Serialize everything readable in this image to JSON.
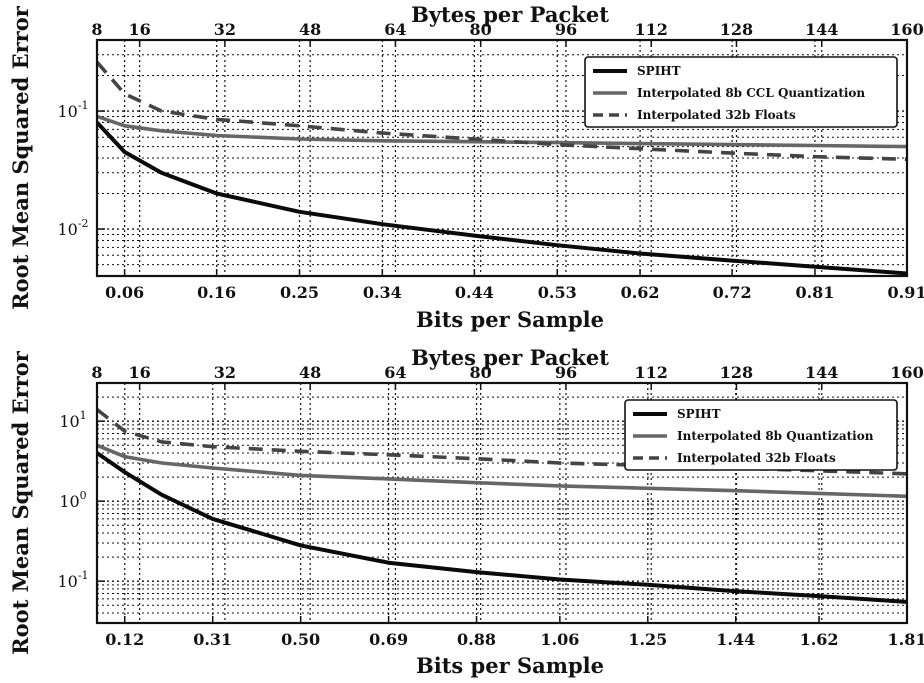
{
  "chart_data": [
    {
      "type": "line",
      "title": "",
      "top_xlabel": "Bytes per Packet",
      "top_xticks": [
        "8",
        "16",
        "32",
        "48",
        "64",
        "80",
        "96",
        "112",
        "128",
        "144",
        "160"
      ],
      "xlabel": "Bits per Sample",
      "xticks": [
        "0.06",
        "0.16",
        "0.25",
        "0.34",
        "0.44",
        "0.53",
        "0.62",
        "0.72",
        "0.81",
        "0.91"
      ],
      "ylabel": "Root Mean Squared Error",
      "yscale": "log",
      "ylim": [
        0.004,
        0.4
      ],
      "yticks": [
        {
          "label": "10",
          "exp": "-1",
          "value": 0.1
        },
        {
          "label": "10",
          "exp": "-2",
          "value": 0.01
        }
      ],
      "xlim": [
        0.03,
        0.91
      ],
      "grid": true,
      "legend_position": "top-right",
      "series": [
        {
          "name": "SPIHT",
          "style": "solid",
          "color": "#0a0a0a",
          "x": [
            0.03,
            0.06,
            0.1,
            0.16,
            0.25,
            0.34,
            0.44,
            0.53,
            0.62,
            0.72,
            0.81,
            0.91
          ],
          "y": [
            0.08,
            0.045,
            0.03,
            0.02,
            0.014,
            0.011,
            0.0088,
            0.0073,
            0.0062,
            0.0054,
            0.0048,
            0.0042
          ]
        },
        {
          "name": "Interpolated 8b CCL Quantization",
          "style": "solid",
          "color": "#666666",
          "x": [
            0.03,
            0.06,
            0.1,
            0.16,
            0.25,
            0.34,
            0.44,
            0.53,
            0.62,
            0.72,
            0.81,
            0.91
          ],
          "y": [
            0.09,
            0.075,
            0.068,
            0.062,
            0.058,
            0.056,
            0.055,
            0.054,
            0.053,
            0.052,
            0.051,
            0.05
          ]
        },
        {
          "name": "Interpolated 32b Floats",
          "style": "dashed",
          "color": "#444444",
          "x": [
            0.03,
            0.06,
            0.1,
            0.16,
            0.25,
            0.34,
            0.44,
            0.53,
            0.62,
            0.72,
            0.81,
            0.91
          ],
          "y": [
            0.26,
            0.14,
            0.1,
            0.085,
            0.075,
            0.065,
            0.058,
            0.052,
            0.048,
            0.044,
            0.041,
            0.039
          ]
        }
      ]
    },
    {
      "type": "line",
      "title": "",
      "top_xlabel": "Bytes per Packet",
      "top_xticks": [
        "8",
        "16",
        "32",
        "48",
        "64",
        "80",
        "96",
        "112",
        "128",
        "144",
        "160"
      ],
      "xlabel": "Bits per Sample",
      "xticks": [
        "0.12",
        "0.31",
        "0.50",
        "0.69",
        "0.88",
        "1.06",
        "1.25",
        "1.44",
        "1.62",
        "1.81"
      ],
      "ylabel": "Root Mean Squared Error",
      "yscale": "log",
      "ylim": [
        0.03,
        30
      ],
      "yticks": [
        {
          "label": "10",
          "exp": "1",
          "value": 10
        },
        {
          "label": "10",
          "exp": "0",
          "value": 1
        },
        {
          "label": "10",
          "exp": "-1",
          "value": 0.1
        }
      ],
      "xlim": [
        0.06,
        1.81
      ],
      "grid": true,
      "legend_position": "top-right",
      "series": [
        {
          "name": "SPIHT",
          "style": "solid",
          "color": "#0a0a0a",
          "x": [
            0.06,
            0.12,
            0.2,
            0.31,
            0.5,
            0.69,
            0.88,
            1.06,
            1.25,
            1.44,
            1.62,
            1.81
          ],
          "y": [
            4.0,
            2.3,
            1.2,
            0.6,
            0.28,
            0.17,
            0.13,
            0.105,
            0.09,
            0.075,
            0.065,
            0.055
          ]
        },
        {
          "name": "Interpolated 8b Quantization",
          "style": "solid",
          "color": "#666666",
          "x": [
            0.06,
            0.12,
            0.2,
            0.31,
            0.5,
            0.69,
            0.88,
            1.06,
            1.25,
            1.44,
            1.62,
            1.81
          ],
          "y": [
            5.0,
            3.6,
            3.0,
            2.6,
            2.1,
            1.9,
            1.7,
            1.55,
            1.45,
            1.35,
            1.25,
            1.15
          ]
        },
        {
          "name": "Interpolated 32b Floats",
          "style": "dashed",
          "color": "#444444",
          "x": [
            0.06,
            0.12,
            0.2,
            0.31,
            0.5,
            0.69,
            0.88,
            1.06,
            1.25,
            1.44,
            1.62,
            1.81
          ],
          "y": [
            14,
            7.5,
            5.5,
            4.8,
            4.2,
            3.8,
            3.4,
            3.0,
            2.8,
            2.6,
            2.4,
            2.2
          ]
        }
      ]
    }
  ]
}
